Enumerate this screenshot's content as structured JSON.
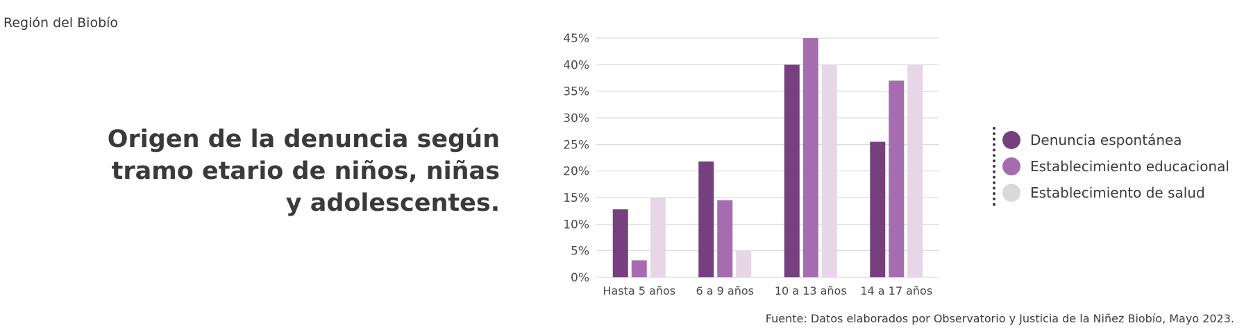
{
  "region": "Región del Biobío",
  "title": "Origen de la denuncia según tramo etario de niños, niñas y adolescentes.",
  "source": "Fuente: Datos elaborados por Observatorio y Justicia de la Niñez Biobío, Mayo 2023.",
  "colors": {
    "series_1": "#76407e",
    "series_2": "#a56db0",
    "series_3": "#e6d6e8",
    "legend_3": "#d9d9d9"
  },
  "chart_data": {
    "type": "bar",
    "categories": [
      "Hasta 5 años",
      "6 a 9 años",
      "10 a 13 años",
      "14 a 17 años"
    ],
    "series": [
      {
        "name": "Denuncia espontánea",
        "values": [
          12.8,
          21.8,
          40,
          25.5
        ]
      },
      {
        "name": "Establecimiento educacional",
        "values": [
          3.2,
          14.5,
          45,
          37
        ]
      },
      {
        "name": "Establecimiento de salud",
        "values": [
          15,
          5,
          40,
          40
        ]
      }
    ],
    "ylim": [
      0,
      45
    ],
    "yticks": [
      "0%",
      "5%",
      "10%",
      "15%",
      "20%",
      "25%",
      "30%",
      "35%",
      "40%",
      "45%"
    ],
    "grid": true,
    "legend_position": "right"
  }
}
